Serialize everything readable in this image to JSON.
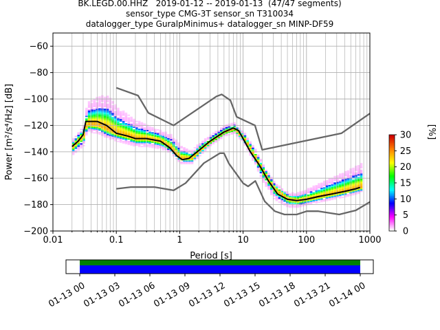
{
  "title_lines": [
    "BK.LEGD.00.HHZ   2019-01-12 -- 2019-01-13  (47/47 segments)",
    "sensor_type CMG-3T sensor_sn T310034",
    "datalogger_type GuralpMinimus+ datalogger_sn MINP-DF59"
  ],
  "chart_data": {
    "type": "heatmap",
    "title": "BK.LEGD.00.HHZ   2019-01-12 -- 2019-01-13  (47/47 segments)",
    "xlabel": "Period [s]",
    "ylabel": "Power [m²/s⁴/Hz] [dB]",
    "xscale": "log",
    "xlim": [
      0.01,
      1000
    ],
    "ylim": [
      -200,
      -50
    ],
    "x_tick_labels": [
      "0.01",
      "0.1",
      "1",
      "10",
      "100",
      "1000"
    ],
    "x_ticks": [
      0.01,
      0.1,
      1,
      10,
      100,
      1000
    ],
    "y_ticks": [
      -200,
      -180,
      -160,
      -140,
      -120,
      -100,
      -80,
      -60
    ],
    "y_tick_labels": [
      "−200",
      "−180",
      "−160",
      "−140",
      "−120",
      "−100",
      "−80",
      "−60"
    ],
    "grid": true,
    "colorbar": {
      "label": "[%]",
      "range": [
        0,
        30
      ],
      "ticks": [
        0,
        5,
        10,
        15,
        20,
        25,
        30
      ],
      "colors": [
        "#ffffff",
        "#ff00ff",
        "#0000ff",
        "#00ffff",
        "#00ff00",
        "#ffff00",
        "#ff8000",
        "#d00000"
      ]
    },
    "series": [
      {
        "name": "mode",
        "color": "#000000",
        "points": [
          [
            0.02,
            -136
          ],
          [
            0.025,
            -132
          ],
          [
            0.03,
            -127
          ],
          [
            0.033,
            -117
          ],
          [
            0.05,
            -117
          ],
          [
            0.07,
            -120
          ],
          [
            0.1,
            -126
          ],
          [
            0.15,
            -128
          ],
          [
            0.2,
            -130
          ],
          [
            0.3,
            -130
          ],
          [
            0.5,
            -132
          ],
          [
            0.7,
            -137
          ],
          [
            0.9,
            -143
          ],
          [
            1.1,
            -146
          ],
          [
            1.4,
            -145
          ],
          [
            2,
            -139
          ],
          [
            3,
            -132
          ],
          [
            5,
            -125
          ],
          [
            7,
            -122
          ],
          [
            8.5,
            -124
          ],
          [
            10,
            -130
          ],
          [
            13,
            -140
          ],
          [
            18,
            -150
          ],
          [
            25,
            -162
          ],
          [
            35,
            -172
          ],
          [
            50,
            -176
          ],
          [
            70,
            -177
          ],
          [
            100,
            -176
          ],
          [
            150,
            -174
          ],
          [
            250,
            -172
          ],
          [
            400,
            -170
          ],
          [
            600,
            -168
          ],
          [
            700,
            -167
          ]
        ]
      },
      {
        "name": "high noise model",
        "color": "#666666",
        "points": [
          [
            0.1,
            -91.5
          ],
          [
            0.22,
            -97.4
          ],
          [
            0.32,
            -110.5
          ],
          [
            0.8,
            -120
          ],
          [
            3.8,
            -98
          ],
          [
            4.6,
            -96.5
          ],
          [
            6.3,
            -101
          ],
          [
            7.9,
            -113.5
          ],
          [
            15.4,
            -120
          ],
          [
            20,
            -138.5
          ],
          [
            354.8,
            -126
          ],
          [
            1000,
            -111
          ]
        ]
      },
      {
        "name": "low noise model",
        "color": "#666666",
        "points": [
          [
            0.1,
            -168
          ],
          [
            0.17,
            -166.7
          ],
          [
            0.4,
            -166.7
          ],
          [
            0.8,
            -169.2
          ],
          [
            1.24,
            -163.7
          ],
          [
            2.4,
            -148.6
          ],
          [
            4.3,
            -141.1
          ],
          [
            5,
            -141.1
          ],
          [
            6,
            -149
          ],
          [
            10,
            -163.8
          ],
          [
            12,
            -166.2
          ],
          [
            15.6,
            -162.1
          ],
          [
            21.9,
            -177.5
          ],
          [
            31.6,
            -185
          ],
          [
            45,
            -187.5
          ],
          [
            70,
            -187.5
          ],
          [
            101,
            -185
          ],
          [
            154,
            -185
          ],
          [
            328,
            -187.5
          ],
          [
            600,
            -184.4
          ],
          [
            1000,
            -178
          ]
        ]
      }
    ],
    "density_band": {
      "x": [
        0.02,
        0.03,
        0.033,
        0.05,
        0.07,
        0.1,
        0.2,
        0.3,
        0.5,
        0.7,
        1,
        1.5,
        2,
        3,
        5,
        7,
        10,
        15,
        20,
        30,
        50,
        70,
        100,
        200,
        400,
        700
      ],
      "y_center": [
        -136,
        -127,
        -119,
        -120,
        -123,
        -126,
        -130,
        -130,
        -132,
        -137,
        -145,
        -145,
        -139,
        -132,
        -125,
        -123,
        -130,
        -144,
        -155,
        -168,
        -176,
        -177,
        -176,
        -173,
        -170,
        -167
      ],
      "spread_up": [
        6,
        8,
        16,
        22,
        26,
        20,
        14,
        10,
        8,
        10,
        10,
        6,
        6,
        5,
        5,
        5,
        5,
        6,
        6,
        5,
        5,
        6,
        8,
        12,
        16,
        18
      ],
      "spread_down": [
        6,
        8,
        6,
        6,
        7,
        6,
        6,
        6,
        6,
        4,
        4,
        4,
        4,
        3,
        3,
        3,
        4,
        6,
        8,
        8,
        6,
        5,
        4,
        4,
        4,
        4
      ]
    },
    "time_coverage": {
      "tick_labels": [
        "01-13 00",
        "01-13 03",
        "01-13 06",
        "01-13 09",
        "01-13 12",
        "01-13 15",
        "01-13 18",
        "01-13 21",
        "01-14 00"
      ],
      "data_color": "#0000ff",
      "segment_color": "#008000"
    }
  }
}
